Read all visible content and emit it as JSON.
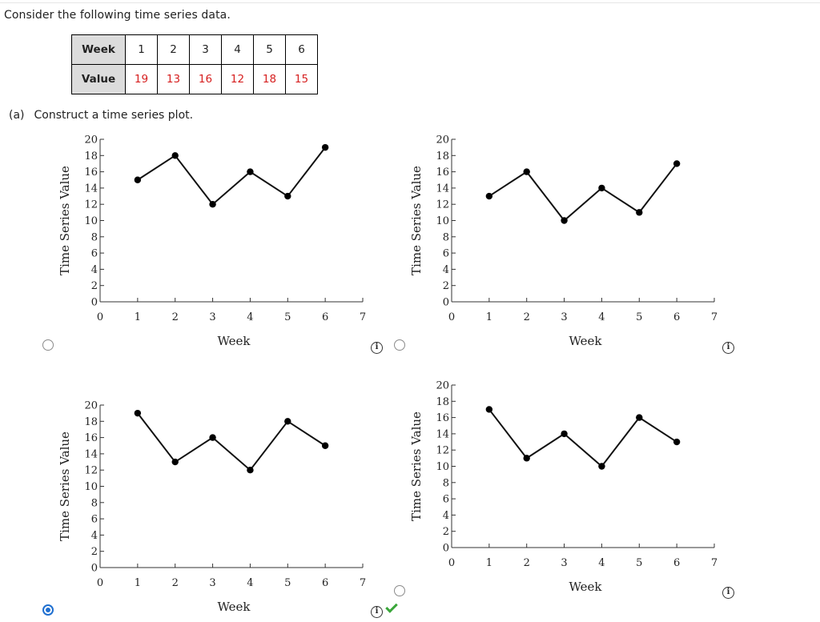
{
  "question": "Consider the following time series data.",
  "table": {
    "week_label": "Week",
    "value_label": "Value",
    "weeks": [
      "1",
      "2",
      "3",
      "4",
      "5",
      "6"
    ],
    "values": [
      "19",
      "13",
      "16",
      "12",
      "18",
      "15"
    ]
  },
  "part_a": {
    "label": "(a)",
    "text": "Construct a time series plot."
  },
  "info_glyph": "i",
  "colors": {
    "radio_selected": "#1f6fd0",
    "check": "#3aa63a",
    "table_values": "#d62020"
  },
  "chart_data": [
    {
      "type": "line",
      "option": "top-left",
      "xlabel": "Week",
      "ylabel": "Time Series Value",
      "xlim": [
        0,
        7
      ],
      "ylim": [
        0,
        20
      ],
      "xticks": [
        "0",
        "1",
        "2",
        "3",
        "4",
        "5",
        "6",
        "7"
      ],
      "yticks": [
        "0",
        "2",
        "4",
        "6",
        "8",
        "10",
        "12",
        "14",
        "16",
        "18",
        "20"
      ],
      "x": [
        1,
        2,
        3,
        4,
        5,
        6
      ],
      "values": [
        15,
        18,
        12,
        16,
        13,
        19
      ],
      "selected": false
    },
    {
      "type": "line",
      "option": "top-right",
      "xlabel": "Week",
      "ylabel": "Time Series Value",
      "xlim": [
        0,
        7
      ],
      "ylim": [
        0,
        20
      ],
      "xticks": [
        "0",
        "1",
        "2",
        "3",
        "4",
        "5",
        "6",
        "7"
      ],
      "yticks": [
        "0",
        "2",
        "4",
        "6",
        "8",
        "10",
        "12",
        "14",
        "16",
        "18",
        "20"
      ],
      "x": [
        1,
        2,
        3,
        4,
        5,
        6
      ],
      "values": [
        13,
        16,
        10,
        14,
        11,
        17
      ],
      "selected": false
    },
    {
      "type": "line",
      "option": "bottom-left",
      "xlabel": "Week",
      "ylabel": "Time Series Value",
      "xlim": [
        0,
        7
      ],
      "ylim": [
        0,
        20
      ],
      "xticks": [
        "0",
        "1",
        "2",
        "3",
        "4",
        "5",
        "6",
        "7"
      ],
      "yticks": [
        "0",
        "2",
        "4",
        "6",
        "8",
        "10",
        "12",
        "14",
        "16",
        "18",
        "20"
      ],
      "x": [
        1,
        2,
        3,
        4,
        5,
        6
      ],
      "values": [
        19,
        13,
        16,
        12,
        18,
        15
      ],
      "selected": true
    },
    {
      "type": "line",
      "option": "bottom-right",
      "xlabel": "Week",
      "ylabel": "Time Series Value",
      "xlim": [
        0,
        7
      ],
      "ylim": [
        0,
        20
      ],
      "xticks": [
        "0",
        "1",
        "2",
        "3",
        "4",
        "5",
        "6",
        "7"
      ],
      "yticks": [
        "0",
        "2",
        "4",
        "6",
        "8",
        "10",
        "12",
        "14",
        "16",
        "18",
        "20"
      ],
      "x": [
        1,
        2,
        3,
        4,
        5,
        6
      ],
      "values": [
        17,
        11,
        14,
        10,
        16,
        13
      ],
      "selected": false
    }
  ]
}
